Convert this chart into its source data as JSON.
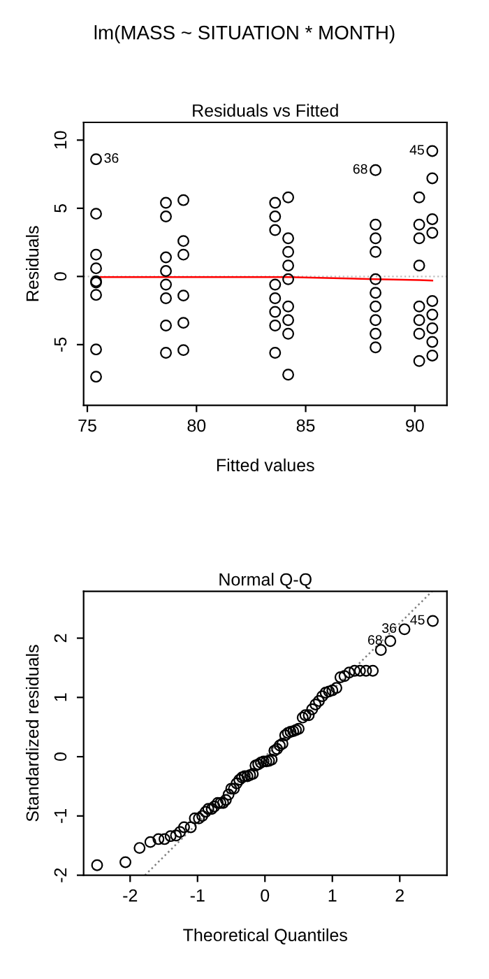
{
  "chart_data": [
    {
      "type": "scatter",
      "title": "Residuals vs Fitted",
      "xlabel": "Fitted values",
      "ylabel": "Residuals",
      "annotations": [
        "lm(MASS ~ SITUATION * MONTH)",
        {
          "text": "36",
          "x": 75.4,
          "y": 8.6
        },
        {
          "text": "68",
          "x": 88.2,
          "y": 7.8
        },
        {
          "text": "45",
          "x": 90.8,
          "y": 9.2
        }
      ],
      "xlim": [
        74.83,
        91.47
      ],
      "ylim": [
        -9.45,
        11.3
      ],
      "xticks": [
        75,
        80,
        85,
        90
      ],
      "yticks": [
        -5,
        0,
        5,
        10
      ],
      "grid": false,
      "ref_lines": [
        {
          "axis": "y",
          "value": 0,
          "color": "#bebebe",
          "line_style": "dotted"
        }
      ],
      "series": [
        {
          "marker": "circle",
          "color": "#000000",
          "x": [
            75.4,
            75.4,
            75.4,
            75.4,
            75.4,
            75.4,
            75.4,
            75.4,
            75.4,
            78.6,
            78.6,
            78.6,
            78.6,
            78.6,
            78.6,
            78.6,
            78.6,
            79.4,
            79.4,
            79.4,
            79.4,
            79.4,
            79.4,
            83.6,
            83.6,
            83.6,
            83.6,
            83.6,
            83.6,
            83.6,
            83.6,
            84.2,
            84.2,
            84.2,
            84.2,
            84.2,
            84.2,
            84.2,
            84.2,
            84.2,
            88.2,
            88.2,
            88.2,
            88.2,
            88.2,
            88.2,
            88.2,
            88.2,
            88.2,
            88.2,
            90.2,
            90.2,
            90.2,
            90.2,
            90.2,
            90.2,
            90.2,
            90.2,
            90.8,
            90.8,
            90.8,
            90.8,
            90.8,
            90.8,
            90.8,
            90.8,
            90.8
          ],
          "values": [
            8.6,
            4.6,
            1.6,
            0.6,
            -0.35,
            -0.45,
            -1.35,
            -5.35,
            -7.35,
            5.4,
            4.4,
            1.4,
            0.4,
            -0.6,
            -1.6,
            -3.6,
            -5.6,
            5.6,
            2.6,
            1.6,
            -1.4,
            -3.4,
            -5.4,
            5.4,
            4.4,
            3.4,
            -0.6,
            -1.6,
            -2.6,
            -3.6,
            -5.6,
            5.8,
            2.8,
            1.8,
            0.8,
            -0.2,
            -2.2,
            -3.2,
            -4.2,
            -7.2,
            7.8,
            3.8,
            2.8,
            1.8,
            -0.2,
            -1.2,
            -2.2,
            -3.2,
            -4.2,
            -5.2,
            5.8,
            3.8,
            2.8,
            0.8,
            -2.2,
            -3.2,
            -4.2,
            -6.2,
            9.2,
            7.2,
            4.2,
            3.2,
            -1.8,
            -2.8,
            -3.8,
            -4.8,
            -5.8
          ]
        },
        {
          "type": "line",
          "color": "#ff0000",
          "line_style": "solid",
          "x": [
            75.4,
            78.6,
            79.4,
            83.6,
            84.2,
            88.2,
            90.2,
            90.8
          ],
          "values": [
            -0.05,
            -0.05,
            -0.05,
            -0.05,
            -0.05,
            -0.2,
            -0.27,
            -0.3
          ]
        }
      ]
    },
    {
      "type": "scatter",
      "title": "Normal Q-Q",
      "xlabel": "Theoretical Quantiles",
      "ylabel": "Standardized residuals",
      "annotations": [
        {
          "text": "45",
          "x": 2.49,
          "y": 2.29
        },
        {
          "text": "36",
          "x": 2.07,
          "y": 2.15
        },
        {
          "text": "68",
          "x": 1.86,
          "y": 1.95
        }
      ],
      "xlim": [
        -2.69,
        2.7
      ],
      "ylim": [
        -2.0,
        2.79
      ],
      "xticks": [
        -2,
        -1,
        0,
        1,
        2
      ],
      "yticks": [
        -2,
        -1,
        0,
        1,
        2
      ],
      "grid": false,
      "series": [
        {
          "marker": "circle",
          "color": "#000000",
          "x": [
            -2.49,
            -2.07,
            -1.86,
            -1.7,
            -1.58,
            -1.49,
            -1.4,
            -1.32,
            -1.26,
            -1.2,
            -1.1,
            -1.04,
            -0.98,
            -0.93,
            -0.88,
            -0.84,
            -0.79,
            -0.75,
            -0.7,
            -0.66,
            -0.62,
            -0.58,
            -0.54,
            -0.5,
            -0.46,
            -0.42,
            -0.38,
            -0.34,
            -0.3,
            -0.26,
            -0.22,
            -0.18,
            -0.14,
            -0.1,
            -0.06,
            -0.02,
            0.02,
            0.06,
            0.1,
            0.14,
            0.18,
            0.22,
            0.26,
            0.3,
            0.34,
            0.38,
            0.42,
            0.46,
            0.5,
            0.56,
            0.6,
            0.65,
            0.7,
            0.75,
            0.8,
            0.85,
            0.9,
            0.95,
            1.0,
            1.06,
            1.12,
            1.18,
            1.25,
            1.33,
            1.41,
            1.5,
            1.6,
            1.72,
            1.86,
            2.07,
            2.49
          ],
          "values": [
            -1.83,
            -1.78,
            -1.54,
            -1.44,
            -1.39,
            -1.39,
            -1.34,
            -1.33,
            -1.27,
            -1.19,
            -1.19,
            -1.04,
            -1.04,
            -1.0,
            -0.93,
            -0.88,
            -0.88,
            -0.84,
            -0.78,
            -0.78,
            -0.78,
            -0.73,
            -0.64,
            -0.54,
            -0.54,
            -0.45,
            -0.39,
            -0.35,
            -0.33,
            -0.33,
            -0.31,
            -0.29,
            -0.15,
            -0.13,
            -0.1,
            -0.08,
            -0.08,
            -0.07,
            -0.05,
            0.1,
            0.13,
            0.19,
            0.22,
            0.36,
            0.4,
            0.42,
            0.43,
            0.45,
            0.47,
            0.66,
            0.7,
            0.7,
            0.8,
            0.88,
            0.94,
            1.02,
            1.08,
            1.1,
            1.12,
            1.16,
            1.34,
            1.36,
            1.42,
            1.45,
            1.45,
            1.45,
            1.45,
            1.8,
            1.95,
            2.15,
            2.29
          ]
        },
        {
          "type": "line",
          "color": "#808080",
          "line_style": "dotted",
          "x": [
            -1.78,
            2.48
          ],
          "values": [
            -2.0,
            2.79
          ]
        }
      ]
    }
  ]
}
